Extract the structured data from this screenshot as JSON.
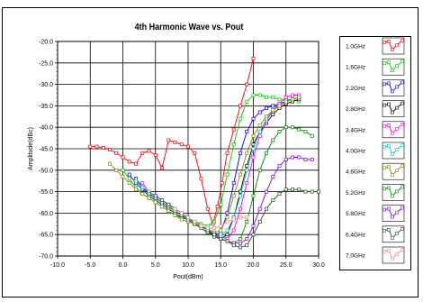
{
  "chart_data": {
    "type": "line",
    "title": "4th Harmonic Wave vs. Pout",
    "xlabel": "Pout(dBm)",
    "ylabel": "Amplitude(dBc)",
    "xlim": [
      -10,
      30
    ],
    "ylim": [
      -70,
      -20
    ],
    "xticks": [
      "-10.0",
      "-5.0",
      "0.0",
      "5.0",
      "10.0",
      "15.0",
      "20.0",
      "25.0",
      "30.0"
    ],
    "yticks": [
      "-20.0",
      "-25.0",
      "-30.0",
      "-35.0",
      "-40.0",
      "-45.0",
      "-50.0",
      "-55.0",
      "-60.0",
      "-65.0",
      "-70.0"
    ],
    "grid": true,
    "legend_position": "right",
    "series": [
      {
        "name": "1.0GHz",
        "color": "#ff0000",
        "points": [
          [
            -5,
            -44.5
          ],
          [
            -4,
            -44.5
          ],
          [
            -3,
            -44.8
          ],
          [
            -2,
            -45.2
          ],
          [
            -1,
            -46
          ],
          [
            0,
            -47
          ],
          [
            1,
            -48
          ],
          [
            2,
            -48.5
          ],
          [
            3,
            -46
          ],
          [
            4,
            -45.5
          ],
          [
            5,
            -46.5
          ],
          [
            6,
            -49.5
          ],
          [
            7,
            -43
          ],
          [
            8,
            -43.5
          ],
          [
            9,
            -44
          ],
          [
            10,
            -44.5
          ],
          [
            11,
            -46
          ],
          [
            12,
            -52
          ],
          [
            13,
            -59
          ],
          [
            13.8,
            -62.5
          ],
          [
            14.5,
            -58.5
          ],
          [
            15.2,
            -53
          ],
          [
            16,
            -46
          ],
          [
            17,
            -40.5
          ],
          [
            18,
            -35
          ],
          [
            19,
            -30
          ],
          [
            20,
            -24
          ]
        ]
      },
      {
        "name": "1.6GHz",
        "color": "#00cc00",
        "points": [
          [
            0,
            -50
          ],
          [
            1,
            -52
          ],
          [
            2,
            -54
          ],
          [
            3,
            -55.5
          ],
          [
            4,
            -56.5
          ],
          [
            5,
            -57.5
          ],
          [
            6,
            -58.5
          ],
          [
            7,
            -59.5
          ],
          [
            8,
            -60.5
          ],
          [
            9,
            -61
          ],
          [
            10,
            -61.5
          ],
          [
            11,
            -62
          ],
          [
            12,
            -62.5
          ],
          [
            13,
            -63
          ],
          [
            14,
            -62
          ],
          [
            15,
            -58
          ],
          [
            16,
            -51
          ],
          [
            17,
            -44
          ],
          [
            18,
            -38
          ],
          [
            19,
            -34
          ],
          [
            20,
            -32.5
          ],
          [
            21,
            -32.5
          ],
          [
            22,
            -33
          ],
          [
            23,
            -33
          ],
          [
            24,
            -33.5
          ],
          [
            25,
            -33.5
          ],
          [
            26,
            -33.5
          ],
          [
            27,
            -34
          ]
        ]
      },
      {
        "name": "2.2GHz",
        "color": "#0000ff",
        "points": [
          [
            1,
            -51
          ],
          [
            2,
            -53
          ],
          [
            3,
            -54.5
          ],
          [
            4,
            -56
          ],
          [
            5,
            -57
          ],
          [
            6,
            -58
          ],
          [
            7,
            -59
          ],
          [
            8,
            -60
          ],
          [
            9,
            -61
          ],
          [
            10,
            -61.5
          ],
          [
            11,
            -62.5
          ],
          [
            12,
            -63.5
          ],
          [
            13,
            -64.5
          ],
          [
            14,
            -65
          ],
          [
            15,
            -64.5
          ],
          [
            16,
            -60
          ],
          [
            17,
            -53
          ],
          [
            18,
            -46
          ],
          [
            19,
            -41
          ],
          [
            20,
            -38
          ],
          [
            21,
            -36.5
          ],
          [
            22,
            -35.5
          ],
          [
            23,
            -35
          ],
          [
            24,
            -34.5
          ],
          [
            25,
            -34
          ],
          [
            26,
            -33.5
          ],
          [
            27,
            -33
          ]
        ]
      },
      {
        "name": "2.8GHz",
        "color": "#000000",
        "points": [
          [
            2,
            -52
          ],
          [
            3,
            -54
          ],
          [
            4,
            -55.5
          ],
          [
            5,
            -56.5
          ],
          [
            6,
            -57.5
          ],
          [
            7,
            -58.5
          ],
          [
            8,
            -59.5
          ],
          [
            9,
            -60.5
          ],
          [
            10,
            -61.5
          ],
          [
            11,
            -62.5
          ],
          [
            12,
            -63.5
          ],
          [
            13,
            -64.5
          ],
          [
            14,
            -65.5
          ],
          [
            15,
            -66
          ],
          [
            16,
            -65
          ],
          [
            17,
            -61
          ],
          [
            18,
            -55
          ],
          [
            19,
            -49
          ],
          [
            20,
            -44
          ],
          [
            21,
            -41
          ],
          [
            22,
            -39
          ],
          [
            23,
            -37
          ],
          [
            24,
            -35.5
          ],
          [
            25,
            -34.5
          ],
          [
            26,
            -34
          ],
          [
            27,
            -33.5
          ]
        ]
      },
      {
        "name": "3.4GHz",
        "color": "#ff00ff",
        "points": [
          [
            3,
            -53
          ],
          [
            4,
            -55
          ],
          [
            5,
            -56
          ],
          [
            6,
            -57
          ],
          [
            7,
            -58
          ],
          [
            8,
            -59
          ],
          [
            9,
            -60
          ],
          [
            10,
            -61
          ],
          [
            11,
            -62
          ],
          [
            12,
            -63
          ],
          [
            13,
            -64
          ],
          [
            14,
            -65
          ],
          [
            15,
            -65.5
          ],
          [
            16,
            -66
          ],
          [
            17,
            -64
          ],
          [
            18,
            -59
          ],
          [
            19,
            -53
          ],
          [
            20,
            -47
          ],
          [
            21,
            -42
          ],
          [
            22,
            -38.5
          ],
          [
            23,
            -36
          ],
          [
            24,
            -34.5
          ],
          [
            25,
            -33
          ],
          [
            26,
            -32.5
          ],
          [
            27,
            -32.5
          ]
        ]
      },
      {
        "name": "4.0GHz",
        "color": "#00cccc",
        "points": [
          [
            2,
            -52.5
          ],
          [
            3,
            -54
          ],
          [
            4,
            -55
          ],
          [
            5,
            -56.5
          ],
          [
            6,
            -57.5
          ],
          [
            7,
            -58.5
          ],
          [
            8,
            -59.5
          ],
          [
            9,
            -60.5
          ],
          [
            10,
            -61
          ],
          [
            11,
            -62
          ],
          [
            12,
            -63
          ],
          [
            13,
            -63.5
          ],
          [
            14,
            -64.5
          ],
          [
            15,
            -65
          ],
          [
            16,
            -64
          ],
          [
            17,
            -61
          ],
          [
            18,
            -56
          ],
          [
            19,
            -50
          ],
          [
            20,
            -45
          ],
          [
            21,
            -41
          ],
          [
            22,
            -38
          ],
          [
            23,
            -36
          ],
          [
            24,
            -35
          ],
          [
            25,
            -34
          ],
          [
            26,
            -33.5
          ],
          [
            27,
            -33
          ]
        ]
      },
      {
        "name": "4.6GHz",
        "color": "#888800",
        "points": [
          [
            -2,
            -48.5
          ],
          [
            -1,
            -50
          ],
          [
            0,
            -51.5
          ],
          [
            1,
            -53
          ],
          [
            2,
            -54.5
          ],
          [
            3,
            -55.5
          ],
          [
            4,
            -56.5
          ],
          [
            5,
            -57.5
          ],
          [
            6,
            -58.5
          ],
          [
            7,
            -59.5
          ],
          [
            8,
            -60.5
          ],
          [
            9,
            -61.5
          ],
          [
            10,
            -62
          ],
          [
            11,
            -62.5
          ],
          [
            12,
            -63
          ],
          [
            13,
            -64
          ],
          [
            14,
            -64.5
          ],
          [
            15,
            -64
          ],
          [
            16,
            -61
          ],
          [
            17,
            -56
          ],
          [
            18,
            -51
          ],
          [
            19,
            -46
          ],
          [
            20,
            -42
          ],
          [
            21,
            -39.5
          ],
          [
            22,
            -37.5
          ],
          [
            23,
            -36
          ],
          [
            24,
            -35
          ],
          [
            25,
            -34
          ],
          [
            26,
            -33.5
          ],
          [
            27,
            -33
          ]
        ]
      },
      {
        "name": "5.2GHz",
        "color": "#008800",
        "points": [
          [
            4,
            -55.5
          ],
          [
            5,
            -56.5
          ],
          [
            6,
            -57.5
          ],
          [
            7,
            -58.5
          ],
          [
            8,
            -59.5
          ],
          [
            9,
            -60.5
          ],
          [
            10,
            -61.5
          ],
          [
            11,
            -62.5
          ],
          [
            12,
            -63.5
          ],
          [
            13,
            -64.5
          ],
          [
            14,
            -65.5
          ],
          [
            15,
            -66
          ],
          [
            16,
            -66.5
          ],
          [
            17,
            -67
          ],
          [
            18,
            -66
          ],
          [
            19,
            -62
          ],
          [
            20,
            -56
          ],
          [
            21,
            -50
          ],
          [
            22,
            -46
          ],
          [
            23,
            -43
          ],
          [
            24,
            -41
          ],
          [
            25,
            -40
          ],
          [
            26,
            -40
          ],
          [
            27,
            -40.5
          ],
          [
            28,
            -41
          ],
          [
            29,
            -42
          ]
        ]
      },
      {
        "name": "5.8GHz",
        "color": "#8800ff",
        "points": [
          [
            5,
            -56
          ],
          [
            6,
            -57
          ],
          [
            7,
            -58
          ],
          [
            8,
            -59
          ],
          [
            9,
            -60
          ],
          [
            10,
            -61
          ],
          [
            11,
            -62
          ],
          [
            12,
            -63
          ],
          [
            13,
            -64
          ],
          [
            14,
            -65
          ],
          [
            15,
            -66
          ],
          [
            16,
            -66.5
          ],
          [
            17,
            -67
          ],
          [
            18,
            -67
          ],
          [
            19,
            -66
          ],
          [
            20,
            -63
          ],
          [
            21,
            -59
          ],
          [
            22,
            -55
          ],
          [
            23,
            -51.5
          ],
          [
            24,
            -49
          ],
          [
            25,
            -47.5
          ],
          [
            26,
            -47
          ],
          [
            27,
            -47
          ],
          [
            28,
            -47.5
          ],
          [
            29,
            -47.5
          ]
        ]
      },
      {
        "name": "6.4GHz",
        "color": "#225522",
        "points": [
          [
            6,
            -57
          ],
          [
            7,
            -58
          ],
          [
            8,
            -59
          ],
          [
            9,
            -60
          ],
          [
            10,
            -61
          ],
          [
            11,
            -62
          ],
          [
            12,
            -63
          ],
          [
            13,
            -64
          ],
          [
            14,
            -65
          ],
          [
            15,
            -66
          ],
          [
            16,
            -66.5
          ],
          [
            17,
            -67.5
          ],
          [
            18,
            -68
          ],
          [
            19,
            -67.5
          ],
          [
            20,
            -65
          ],
          [
            21,
            -62
          ],
          [
            22,
            -59
          ],
          [
            23,
            -57
          ],
          [
            24,
            -55.5
          ],
          [
            25,
            -54.5
          ],
          [
            26,
            -54.5
          ],
          [
            27,
            -54.5
          ],
          [
            28,
            -55
          ],
          [
            29,
            -55
          ],
          [
            30,
            -55
          ]
        ]
      },
      {
        "name": "7.0GHz",
        "color": "#ff8888",
        "points": [
          [
            8,
            -59
          ],
          [
            9,
            -60
          ],
          [
            10,
            -61
          ],
          [
            11,
            -62
          ],
          [
            12,
            -63
          ],
          [
            13,
            -63.5
          ],
          [
            14,
            -63.5
          ],
          [
            15,
            -63
          ],
          [
            16,
            -62
          ],
          [
            17,
            -61.5
          ],
          [
            18,
            -61
          ],
          [
            19,
            -61
          ]
        ]
      }
    ]
  }
}
